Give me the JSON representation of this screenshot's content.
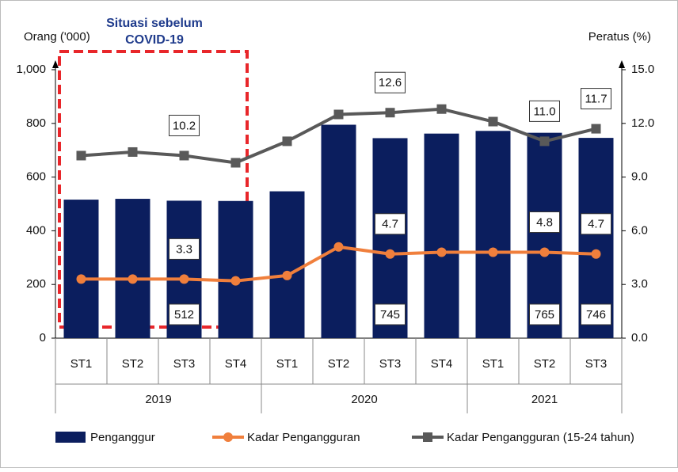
{
  "chart_data": {
    "type": "bar",
    "annotation": [
      "Situasi sebelum",
      "COVID-19"
    ],
    "ylabel": "Orang ('000)",
    "y2label": "Peratus (%)",
    "categories": [
      "ST1",
      "ST2",
      "ST3",
      "ST4",
      "ST1",
      "ST2",
      "ST3",
      "ST4",
      "ST1",
      "ST2",
      "ST3"
    ],
    "x_groups": [
      {
        "label": "2019",
        "span": 4
      },
      {
        "label": "2020",
        "span": 4
      },
      {
        "label": "2021",
        "span": 3
      }
    ],
    "ylim": [
      0,
      1000
    ],
    "yticks": [
      0,
      200,
      400,
      600,
      800,
      {
        "value": 1000,
        "label": "1,000"
      }
    ],
    "y2lim": [
      0,
      15
    ],
    "y2ticks": [
      {
        "value": 0,
        "label": "0.0"
      },
      {
        "value": 3,
        "label": "3.0"
      },
      {
        "value": 6,
        "label": "6.0"
      },
      {
        "value": 9,
        "label": "9.0"
      },
      {
        "value": 12,
        "label": "12.0"
      },
      {
        "value": 15,
        "label": "15.0"
      }
    ],
    "legend": "bottom",
    "series": [
      {
        "name": "Penganggur",
        "type": "bar",
        "color": "#0b1e5e",
        "values": [
          516,
          519,
          512,
          511,
          547,
          795,
          745,
          762,
          772,
          765,
          746
        ],
        "value_labels": [
          null,
          null,
          "512",
          null,
          null,
          null,
          "745",
          null,
          null,
          "765",
          "746"
        ]
      },
      {
        "name": "Kadar Pengangguran",
        "type": "line",
        "axis": "y2",
        "color": "#f07f3c",
        "marker": "circle",
        "values": [
          3.3,
          3.3,
          3.3,
          3.2,
          3.5,
          5.1,
          4.7,
          4.8,
          4.8,
          4.8,
          4.7
        ],
        "value_labels": [
          null,
          null,
          "3.3",
          null,
          null,
          null,
          "4.7",
          null,
          null,
          "4.8",
          "4.7"
        ]
      },
      {
        "name": "Kadar Pengangguran (15-24 tahun)",
        "type": "line",
        "axis": "y2",
        "color": "#595959",
        "marker": "square",
        "values": [
          10.2,
          10.4,
          10.2,
          9.8,
          11.0,
          12.5,
          12.6,
          12.8,
          12.1,
          11.0,
          11.7
        ],
        "value_labels": [
          null,
          null,
          "10.2",
          null,
          null,
          null,
          "12.6",
          null,
          null,
          "11.0",
          "11.7"
        ]
      }
    ]
  }
}
